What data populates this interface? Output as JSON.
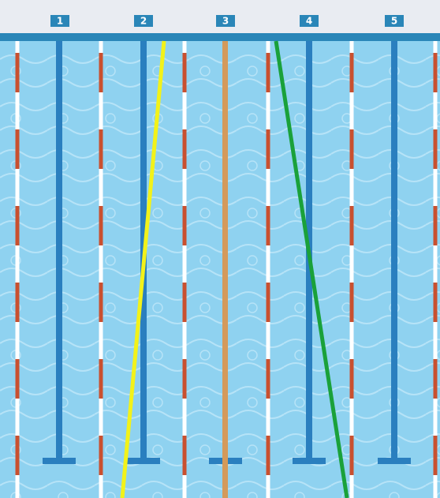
{
  "lanes": [
    {
      "label": "1"
    },
    {
      "label": "2"
    },
    {
      "label": "3"
    },
    {
      "label": "4"
    },
    {
      "label": "5"
    }
  ]
}
